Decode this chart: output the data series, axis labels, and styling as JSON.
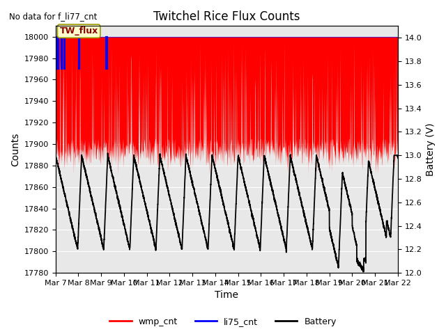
{
  "title": "Twitchel Rice Flux Counts",
  "no_data_text": "No data for f_li77_cnt",
  "xlabel": "Time",
  "ylabel_left": "Counts",
  "ylabel_right": "Battery (V)",
  "ylim_left": [
    17780,
    18010
  ],
  "ylim_right": [
    12.0,
    14.1
  ],
  "yticks_left": [
    17780,
    17800,
    17820,
    17840,
    17860,
    17880,
    17900,
    17920,
    17940,
    17960,
    17980,
    18000
  ],
  "yticks_right": [
    12.0,
    12.2,
    12.4,
    12.6,
    12.8,
    13.0,
    13.2,
    13.4,
    13.6,
    13.8,
    14.0
  ],
  "xtick_labels": [
    "Mar 7",
    "Mar 8",
    "Mar 9",
    "Mar 10",
    "Mar 11",
    "Mar 12",
    "Mar 13",
    "Mar 14",
    "Mar 15",
    "Mar 16",
    "Mar 17",
    "Mar 18",
    "Mar 19",
    "Mar 20",
    "Mar 21",
    "Mar 22"
  ],
  "background_color": "#ffffff",
  "plot_bg_color": "#e8e8e8",
  "grid_color": "#ffffff",
  "wmp_color": "#ff0000",
  "li75_color": "#0000ff",
  "battery_color": "#000000",
  "tw_flux_label": "TW_flux",
  "tw_flux_bg": "#ffffcc",
  "tw_flux_border": "#999900",
  "legend_items": [
    "wmp_cnt",
    "li75_cnt",
    "Battery"
  ],
  "figsize": [
    6.4,
    4.8
  ],
  "dpi": 100
}
